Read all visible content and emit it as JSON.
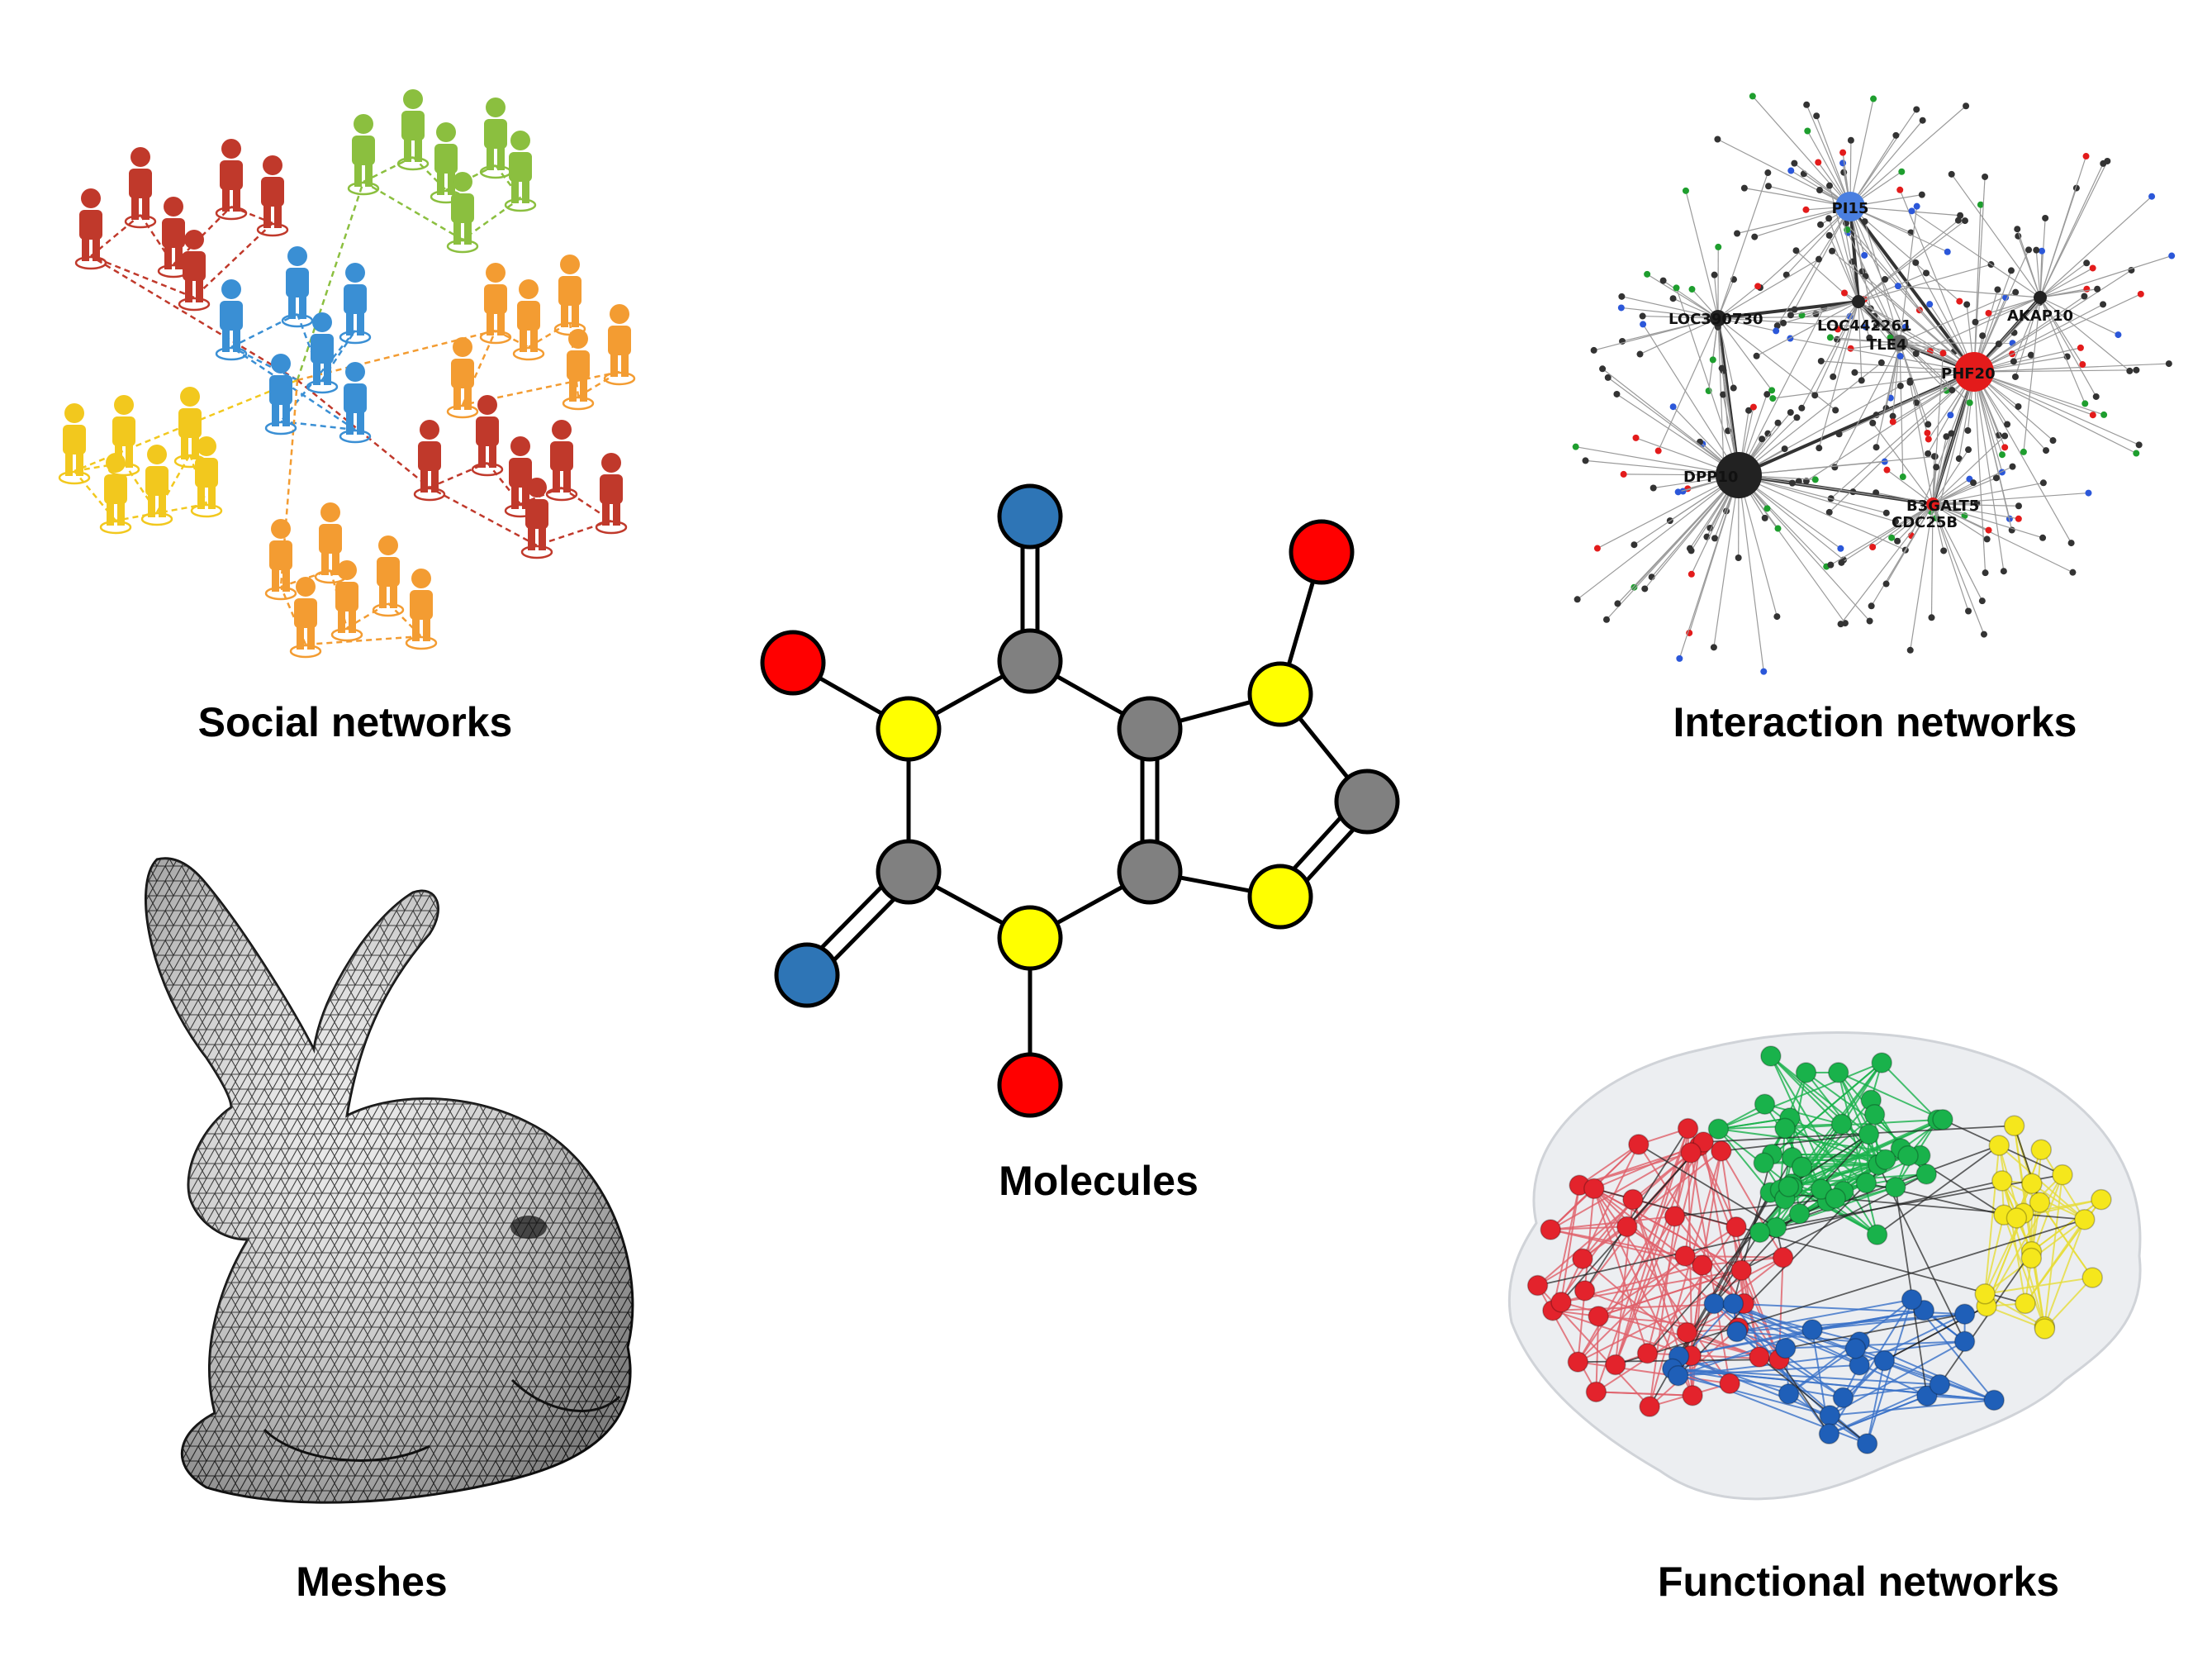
{
  "panels": {
    "social": {
      "caption": "Social networks"
    },
    "interaction": {
      "caption": "Interaction networks",
      "hub_labels": [
        "PI15",
        "LOC390730",
        "TLE4",
        "PHF20",
        "DPP10",
        "B3GALT5",
        "LOC442261",
        "AKAP10",
        "CDC25B"
      ]
    },
    "molecules": {
      "caption": "Molecules"
    },
    "meshes": {
      "caption": "Meshes"
    },
    "functional": {
      "caption": "Functional networks"
    }
  },
  "colors": {
    "atom_carbon": "#808080",
    "atom_nitrogen": "#ffff00",
    "atom_oxygen": "#2e75b6",
    "atom_hydrogen": "#ff0000",
    "person_red": "#c0392b",
    "person_green": "#8bbf3f",
    "person_blue": "#3a8fd4",
    "person_orange": "#f39c32",
    "person_yellow": "#f2c81e",
    "brain_red": "#e3232c",
    "brain_green": "#19b24b",
    "brain_yellow": "#f5e71c",
    "brain_blue": "#1f5fb8"
  }
}
